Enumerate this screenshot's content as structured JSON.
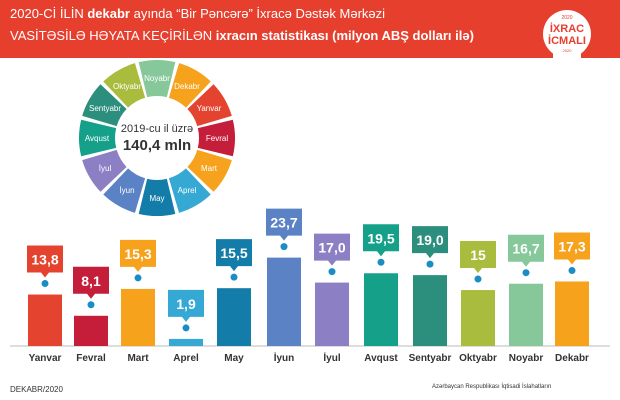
{
  "header": {
    "line1_regular": "2020-Cİ İLİN",
    "line1_bold": "dekabr",
    "line1_rest": "ayında “Bir Pəncərə” İxracə Dəstək Mərkəzi",
    "line2_regular": "VASİTƏSİLƏ HƏYATA KEÇİRİLƏN",
    "line2_bold": "ixracın statistikası (milyon ABŞ dolları ilə)"
  },
  "badge": {
    "year": "2020",
    "line1": "İXRAC",
    "line2": "İCMALI",
    "sub": "2020"
  },
  "colors": {
    "header_bg": "#e63f2e",
    "dot": "#1a8ec4"
  },
  "chart_data": {
    "type": "bar",
    "categories": [
      "Yanvar",
      "Fevral",
      "Mart",
      "Aprel",
      "May",
      "İyun",
      "İyul",
      "Avqust",
      "Sentyabr",
      "Oktyabr",
      "Noyabr",
      "Dekabr"
    ],
    "values": [
      13.8,
      8.1,
      15.3,
      1.9,
      15.5,
      23.7,
      17.0,
      19.5,
      19.0,
      15,
      16.7,
      17.3
    ],
    "value_labels": [
      "13,8",
      "8,1",
      "15,3",
      "1,9",
      "15,5",
      "23,7",
      "17,0",
      "19,5",
      "19,0",
      "15",
      "16,7",
      "17,3"
    ],
    "colors": [
      "#e4442f",
      "#c41e3a",
      "#f6a21d",
      "#35a9d4",
      "#137ca8",
      "#5b82c5",
      "#8c7fc4",
      "#15a08a",
      "#2c8f7e",
      "#a9bc3e",
      "#86c89a",
      "#f6a21d"
    ],
    "ylim": [
      0,
      25
    ],
    "grid": false,
    "donut_total_label": "2019-cu il üzrə",
    "donut_total_value": "140,4 mln",
    "donut_segments": [
      {
        "label": "Yanvar",
        "color": "#e4442f"
      },
      {
        "label": "Fevral",
        "color": "#c41e3a"
      },
      {
        "label": "Mart",
        "color": "#f6a21d"
      },
      {
        "label": "Aprel",
        "color": "#35a9d4"
      },
      {
        "label": "May",
        "color": "#137ca8"
      },
      {
        "label": "İyun",
        "color": "#5b82c5"
      },
      {
        "label": "İyul",
        "color": "#8c7fc4"
      },
      {
        "label": "Avqust",
        "color": "#15a08a"
      },
      {
        "label": "Sentyabr",
        "color": "#2c8f7e"
      },
      {
        "label": "Oktyabr",
        "color": "#a9bc3e"
      },
      {
        "label": "Noyabr",
        "color": "#86c89a"
      },
      {
        "label": "Dekabr",
        "color": "#f6a21d"
      }
    ]
  },
  "footer": {
    "left": "DEKABR/2020",
    "right": "Azərbaycan Respublikası İqtisadi İslahatların"
  }
}
